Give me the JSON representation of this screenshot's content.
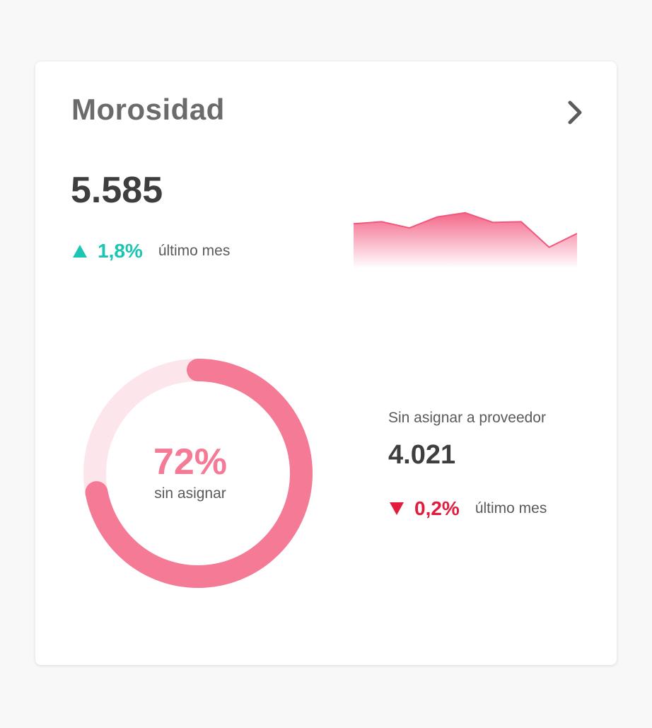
{
  "card": {
    "title": "Morosidad",
    "total_value": "5.585",
    "total_trend": {
      "direction": "up",
      "percent": "1,8%",
      "period": "último mes",
      "color": "#1bc4b3"
    },
    "sparkline": {
      "color": "#f2577c",
      "values": [
        54,
        57,
        48,
        64,
        70,
        56,
        57,
        20,
        40
      ]
    },
    "donut": {
      "percent_value": 72,
      "percent_text": "72%",
      "caption": "sin asignar",
      "fill_color": "#f47a96",
      "track_color": "#fde6eb"
    },
    "unassigned": {
      "label": "Sin asignar a proveedor",
      "value": "4.021",
      "trend": {
        "direction": "down",
        "percent": "0,2%",
        "period": "último mes",
        "color": "#e31b3c"
      }
    }
  },
  "icons": {
    "nav": "chevron-right-icon",
    "trend_up": "triangle-up-icon",
    "trend_down": "triangle-down-icon"
  }
}
